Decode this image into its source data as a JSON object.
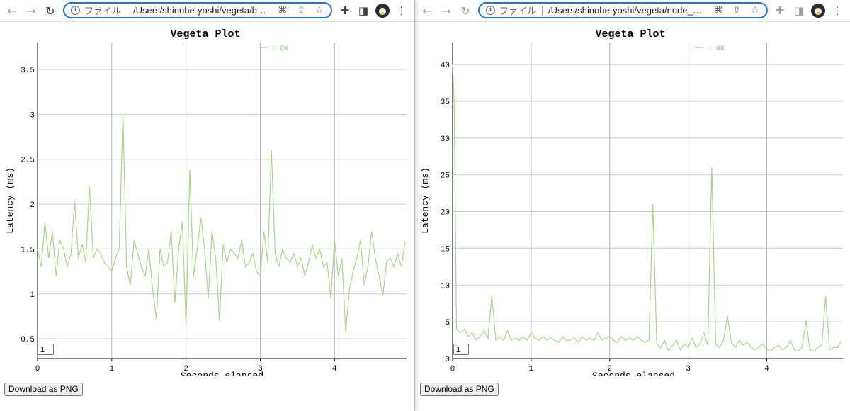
{
  "windows": [
    {
      "id": "left",
      "toolbar": {
        "back_icon": "arrow-left-icon",
        "forward_icon": "arrow-right-icon",
        "reload_icon": "reload-icon",
        "scheme_label": "ファイル",
        "url": "/Users/shinohe-yoshi/vegeta/bun_p..."
      },
      "zoom_value": "1",
      "download_label": "Download as PNG"
    },
    {
      "id": "right",
      "toolbar": {
        "back_icon": "arrow-left-icon",
        "forward_icon": "arrow-right-icon",
        "reload_icon": "reload-icon",
        "scheme_label": "ファイル",
        "url": "/Users/shinohe-yoshi/vegeta/node_prot.h..."
      },
      "zoom_value": "1",
      "download_label": "Download as PNG"
    }
  ],
  "colors": {
    "series": "#a6d785",
    "grid": "#cccccc",
    "omnibox_border": "#1a73e8"
  },
  "chart_data": [
    {
      "type": "line",
      "title": "Vegeta Plot",
      "xlabel": "Seconds elapsed",
      "ylabel": "Latency (ms)",
      "xlim": [
        0,
        4.97
      ],
      "ylim": [
        0.28,
        3.8
      ],
      "xticks": [
        "0",
        "1",
        "2",
        "3",
        "4"
      ],
      "yticks": [
        "0.5",
        "1",
        "1.5",
        "2",
        "2.5",
        "3",
        "3.5"
      ],
      "grid": true,
      "legend_position": "top-center",
      "series": [
        {
          "name": ": OK",
          "x": [
            0,
            0.05,
            0.1,
            0.15,
            0.2,
            0.25,
            0.3,
            0.35,
            0.4,
            0.45,
            0.5,
            0.55,
            0.6,
            0.65,
            0.7,
            0.75,
            0.8,
            0.85,
            0.9,
            0.95,
            1.0,
            1.05,
            1.1,
            1.15,
            1.2,
            1.25,
            1.3,
            1.35,
            1.4,
            1.45,
            1.5,
            1.55,
            1.6,
            1.65,
            1.7,
            1.75,
            1.8,
            1.85,
            1.9,
            1.95,
            2.0,
            2.05,
            2.1,
            2.15,
            2.2,
            2.25,
            2.3,
            2.35,
            2.4,
            2.45,
            2.5,
            2.55,
            2.6,
            2.65,
            2.7,
            2.75,
            2.8,
            2.85,
            2.9,
            2.95,
            3.0,
            3.05,
            3.1,
            3.15,
            3.2,
            3.25,
            3.3,
            3.35,
            3.4,
            3.45,
            3.5,
            3.55,
            3.6,
            3.65,
            3.7,
            3.75,
            3.8,
            3.85,
            3.9,
            3.95,
            4.0,
            4.05,
            4.1,
            4.15,
            4.2,
            4.25,
            4.3,
            4.35,
            4.4,
            4.45,
            4.5,
            4.55,
            4.6,
            4.65,
            4.7,
            4.75,
            4.8,
            4.85,
            4.9,
            4.95
          ],
          "y": [
            1.5,
            1.3,
            1.8,
            1.4,
            1.7,
            1.2,
            1.6,
            1.5,
            1.3,
            1.45,
            2.03,
            1.4,
            1.55,
            1.35,
            2.2,
            1.4,
            1.5,
            1.45,
            1.35,
            1.3,
            1.25,
            1.4,
            1.5,
            3.0,
            1.3,
            1.1,
            1.6,
            1.45,
            1.3,
            1.2,
            1.5,
            1.05,
            0.72,
            1.5,
            1.3,
            1.35,
            1.7,
            0.9,
            1.5,
            1.8,
            0.65,
            2.38,
            1.2,
            1.5,
            1.85,
            1.5,
            0.95,
            1.7,
            1.4,
            0.7,
            1.55,
            1.35,
            1.5,
            1.45,
            1.4,
            1.6,
            1.3,
            1.35,
            1.45,
            1.25,
            1.2,
            1.7,
            1.35,
            2.6,
            1.45,
            1.3,
            1.5,
            1.4,
            1.35,
            1.45,
            1.3,
            1.4,
            1.2,
            1.35,
            1.55,
            1.4,
            1.5,
            1.3,
            1.35,
            0.95,
            1.6,
            1.2,
            1.4,
            0.57,
            1.05,
            1.25,
            1.4,
            1.6,
            1.1,
            1.3,
            1.7,
            1.4,
            1.2,
            0.98,
            1.35,
            1.4,
            1.3,
            1.45,
            1.3,
            1.58
          ]
        }
      ]
    },
    {
      "type": "line",
      "title": "Vegeta Plot",
      "xlabel": "Seconds elapsed",
      "ylabel": "Latency (ms)",
      "xlim": [
        0,
        4.97
      ],
      "ylim": [
        0,
        43
      ],
      "xticks": [
        "0",
        "1",
        "2",
        "3",
        "4"
      ],
      "yticks": [
        "0",
        "5",
        "10",
        "15",
        "20",
        "25",
        "30",
        "35",
        "40"
      ],
      "grid": true,
      "legend_position": "top-center",
      "series": [
        {
          "name": ": OK",
          "x": [
            0,
            0.02,
            0.05,
            0.1,
            0.15,
            0.2,
            0.25,
            0.3,
            0.35,
            0.4,
            0.45,
            0.5,
            0.55,
            0.6,
            0.65,
            0.7,
            0.75,
            0.8,
            0.85,
            0.9,
            0.95,
            1.0,
            1.05,
            1.1,
            1.15,
            1.2,
            1.25,
            1.3,
            1.35,
            1.4,
            1.45,
            1.5,
            1.55,
            1.6,
            1.65,
            1.7,
            1.75,
            1.8,
            1.85,
            1.9,
            1.95,
            2.0,
            2.05,
            2.1,
            2.15,
            2.2,
            2.25,
            2.3,
            2.35,
            2.4,
            2.45,
            2.5,
            2.55,
            2.6,
            2.65,
            2.7,
            2.75,
            2.8,
            2.85,
            2.9,
            2.95,
            3.0,
            3.05,
            3.1,
            3.15,
            3.2,
            3.25,
            3.3,
            3.35,
            3.4,
            3.45,
            3.5,
            3.55,
            3.6,
            3.65,
            3.7,
            3.75,
            3.8,
            3.85,
            3.9,
            3.95,
            4.0,
            4.05,
            4.1,
            4.15,
            4.2,
            4.25,
            4.3,
            4.35,
            4.4,
            4.45,
            4.5,
            4.55,
            4.6,
            4.65,
            4.7,
            4.75,
            4.8,
            4.85,
            4.9,
            4.95
          ],
          "y": [
            40,
            35,
            4,
            3.5,
            4,
            3,
            3.5,
            2.5,
            3,
            3.8,
            2.8,
            8.5,
            2.5,
            3,
            2.5,
            3.8,
            2.5,
            2.8,
            2.5,
            3,
            2.5,
            3.5,
            2.8,
            2.5,
            3,
            2.5,
            2.8,
            2.5,
            2.2,
            3,
            2.5,
            2.5,
            2.8,
            2.2,
            3,
            2.5,
            2.8,
            2.5,
            3.5,
            2.5,
            2.8,
            3,
            2.5,
            2.2,
            3,
            2.5,
            2.8,
            2.5,
            3,
            2.5,
            2.2,
            2.5,
            21,
            2,
            1.5,
            2.5,
            1,
            1.8,
            2.5,
            1.2,
            2,
            1.5,
            2.8,
            1.5,
            2,
            3.5,
            1.8,
            26,
            2,
            1.5,
            2.5,
            5.8,
            2.2,
            1.5,
            2.5,
            1.8,
            2.2,
            1.5,
            1.2,
            1.5,
            2,
            1.2,
            1,
            1.5,
            1.8,
            1.2,
            1.5,
            2.5,
            1.2,
            1,
            1.5,
            5.2,
            1.2,
            1,
            1.5,
            1.8,
            8.5,
            1.2,
            1.5,
            1.5,
            2.4
          ]
        }
      ]
    }
  ]
}
